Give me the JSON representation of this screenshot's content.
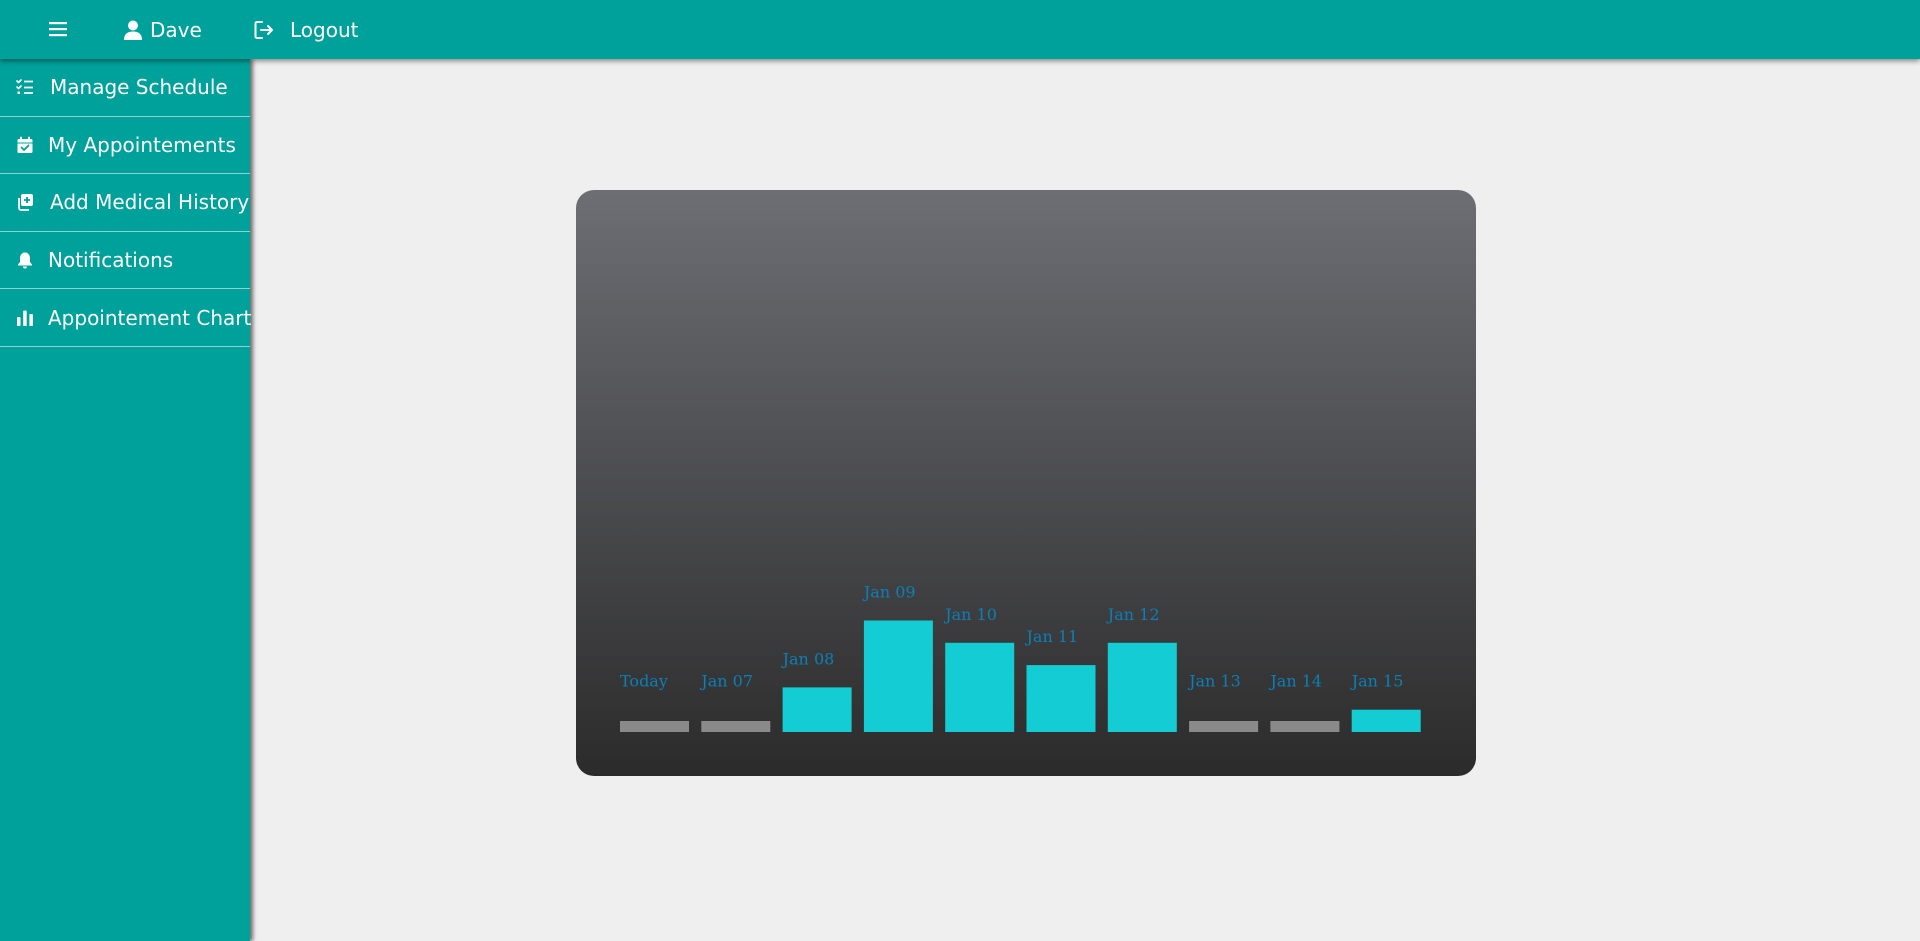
{
  "header": {
    "menu_icon": "hamburger-icon",
    "user_name": "Dave",
    "user_icon": "user-icon",
    "logout_label": "Logout",
    "logout_icon": "logout-icon"
  },
  "sidebar": {
    "items": [
      {
        "label": "Manage Schedule",
        "icon": "checklist-icon"
      },
      {
        "label": "My Appointements",
        "icon": "calendar-check-icon"
      },
      {
        "label": "Add Medical History",
        "icon": "add-copy-icon"
      },
      {
        "label": "Notifications",
        "icon": "bell-icon"
      },
      {
        "label": "Appointement Chart",
        "icon": "bar-chart-icon"
      }
    ]
  },
  "colors": {
    "accent": "#00a19a",
    "bar_active": "#14ccd3",
    "bar_zero": "#8a8a8a",
    "label": "#0c7fb7",
    "background": "#efefef"
  },
  "chart_data": {
    "type": "bar",
    "categories": [
      "Today",
      "Jan 07",
      "Jan 08",
      "Jan 09",
      "Jan 10",
      "Jan 11",
      "Jan 12",
      "Jan 13",
      "Jan 14",
      "Jan 15"
    ],
    "values": [
      0,
      0,
      2,
      5,
      4,
      3,
      4,
      0,
      0,
      1
    ],
    "title": "",
    "xlabel": "",
    "ylabel": "",
    "grid": false
  }
}
